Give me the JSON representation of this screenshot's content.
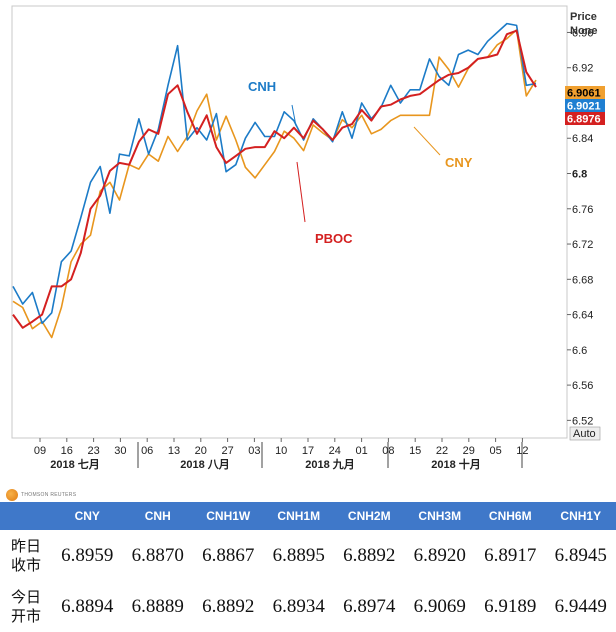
{
  "chart_data": {
    "type": "line",
    "x_tick_labels": [
      "09",
      "16",
      "23",
      "30",
      "06",
      "13",
      "20",
      "27",
      "03",
      "10",
      "17",
      "24",
      "01",
      "08",
      "15",
      "22",
      "29",
      "05",
      "12"
    ],
    "month_labels": [
      "2018 七月",
      "2018 八月",
      "2018 九月",
      "2018 十月"
    ],
    "y_ticks": [
      "6.96",
      "6.92",
      "6.88",
      "6.84",
      "6.8",
      "6.76",
      "6.72",
      "6.68",
      "6.64",
      "6.6",
      "6.56",
      "6.52"
    ],
    "ylim": [
      6.5,
      6.99
    ],
    "price_header": [
      "Price",
      "None"
    ],
    "auto_label": "Auto",
    "last_values": [
      {
        "text": "6.9061",
        "bg": "#f0a030",
        "color": "#000000"
      },
      {
        "text": "6.9021",
        "bg": "#1f7fd1",
        "color": "#ffffff"
      },
      {
        "text": "6.8976",
        "bg": "#d42020",
        "color": "#ffffff"
      }
    ],
    "series": [
      {
        "name": "CNY",
        "color": "#e8961e",
        "values": [
          6.655,
          6.648,
          6.624,
          6.632,
          6.614,
          6.648,
          6.7,
          6.72,
          6.73,
          6.78,
          6.79,
          6.77,
          6.81,
          6.805,
          6.822,
          6.814,
          6.842,
          6.825,
          6.842,
          6.871,
          6.89,
          6.838,
          6.865,
          6.838,
          6.807,
          6.795,
          6.81,
          6.825,
          6.848,
          6.84,
          6.826,
          6.855,
          6.846,
          6.838,
          6.861,
          6.852,
          6.866,
          6.845,
          6.85,
          6.86,
          6.866,
          6.866,
          6.866,
          6.866,
          6.932,
          6.918,
          6.898,
          6.919,
          6.93,
          6.932,
          6.946,
          6.953,
          6.963,
          6.888,
          6.906
        ]
      },
      {
        "name": "CNH",
        "color": "#1c7bc7",
        "values": [
          6.672,
          6.652,
          6.665,
          6.63,
          6.642,
          6.7,
          6.712,
          6.75,
          6.79,
          6.808,
          6.755,
          6.822,
          6.82,
          6.862,
          6.822,
          6.85,
          6.9,
          6.945,
          6.838,
          6.852,
          6.838,
          6.868,
          6.802,
          6.81,
          6.84,
          6.858,
          6.842,
          6.842,
          6.87,
          6.86,
          6.838,
          6.862,
          6.85,
          6.836,
          6.87,
          6.84,
          6.88,
          6.862,
          6.875,
          6.9,
          6.88,
          6.895,
          6.895,
          6.93,
          6.91,
          6.9,
          6.935,
          6.94,
          6.935,
          6.95,
          6.96,
          6.97,
          6.968,
          6.9,
          6.902
        ]
      },
      {
        "name": "PBOC",
        "color": "#d42020",
        "values": [
          6.64,
          6.625,
          6.632,
          6.64,
          6.672,
          6.672,
          6.68,
          6.71,
          6.76,
          6.775,
          6.803,
          6.812,
          6.81,
          6.836,
          6.85,
          6.845,
          6.89,
          6.9,
          6.87,
          6.845,
          6.866,
          6.83,
          6.812,
          6.82,
          6.828,
          6.83,
          6.83,
          6.848,
          6.84,
          6.852,
          6.84,
          6.86,
          6.85,
          6.838,
          6.852,
          6.856,
          6.872,
          6.86,
          6.876,
          6.878,
          6.884,
          6.888,
          6.89,
          6.898,
          6.906,
          6.912,
          6.914,
          6.92,
          6.93,
          6.932,
          6.935,
          6.958,
          6.962,
          6.915,
          6.898
        ]
      }
    ]
  },
  "table": {
    "columns": [
      "CNY",
      "CNH",
      "CNH1W",
      "CNH1M",
      "CNH2M",
      "CNH3M",
      "CNH6M",
      "CNH1Y"
    ],
    "rows": [
      {
        "label": [
          "昨日",
          "收市"
        ],
        "values": [
          "6.8959",
          "6.8870",
          "6.8867",
          "6.8895",
          "6.8892",
          "6.8920",
          "6.8917",
          "6.8945"
        ]
      },
      {
        "label": [
          "今日",
          "开市"
        ],
        "values": [
          "6.8894",
          "6.8889",
          "6.8892",
          "6.8934",
          "6.8974",
          "6.9069",
          "6.9189",
          "6.9449"
        ]
      }
    ]
  },
  "logo": {
    "text": "THOMSON REUTERS"
  }
}
